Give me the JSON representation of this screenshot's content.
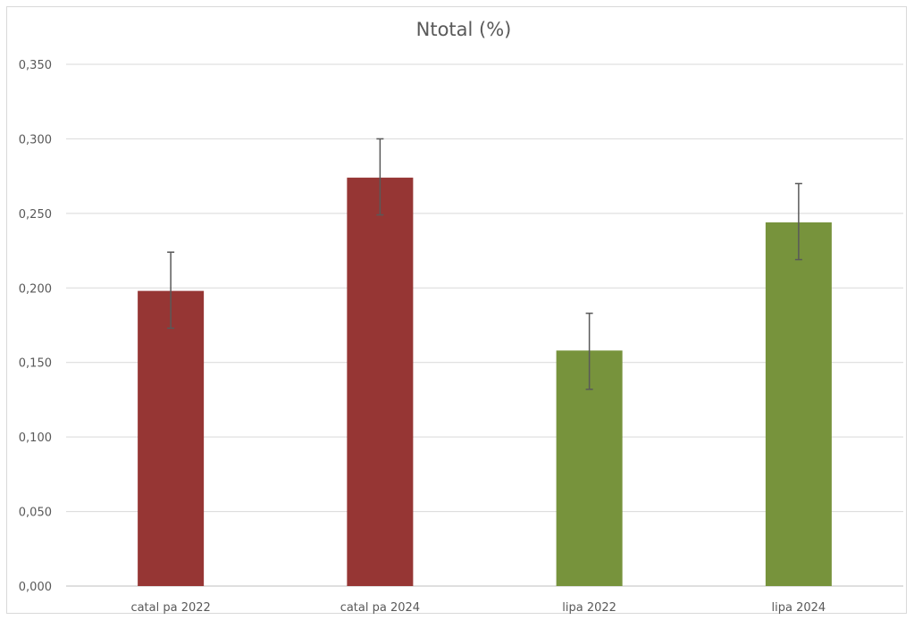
{
  "chart_data": {
    "type": "bar",
    "title": "Ntotal (%)",
    "xlabel": "",
    "ylabel": "",
    "categories": [
      "catalpa 2022",
      "catalpa 2024",
      "lipa 2022",
      "lipa 2024"
    ],
    "category_labels": [
      "catal pa 2022",
      "catal pa 2024",
      "lipa 2022",
      "lipa 2024"
    ],
    "values": [
      0.198,
      0.274,
      0.158,
      0.244
    ],
    "error_upper": [
      0.224,
      0.3,
      0.183,
      0.27
    ],
    "error_lower": [
      0.173,
      0.249,
      0.132,
      0.219
    ],
    "bar_colors": [
      "#963634",
      "#963634",
      "#77933c",
      "#77933c"
    ],
    "ylim": [
      0,
      0.35
    ],
    "yticks": [
      0,
      0.05,
      0.1,
      0.15,
      0.2,
      0.25,
      0.3,
      0.35
    ],
    "ytick_labels": [
      "0,000",
      "0,050",
      "0,100",
      "0,150",
      "0,200",
      "0,250",
      "0,300",
      "0,350"
    ],
    "grid": true,
    "legend": "none",
    "colors": {
      "gridline": "#d9d9d9",
      "axis": "#bfbfbf",
      "error_bar": "#595959",
      "text": "#595959"
    }
  }
}
